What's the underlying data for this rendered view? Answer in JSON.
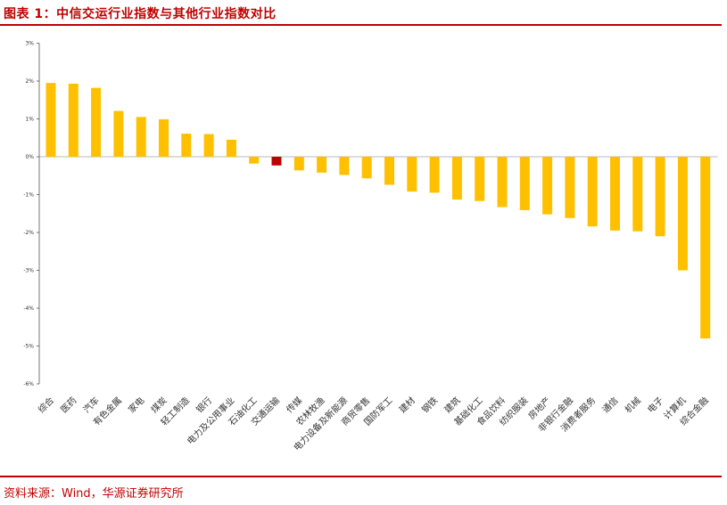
{
  "title": "图表 1：中信交运行业指数与其他行业指数对比",
  "source": "资料来源：Wind，华源证券研究所",
  "colors": {
    "bar": "#ffc000",
    "highlight": "#c00000",
    "accent": "#c00000"
  },
  "chart_data": {
    "type": "bar",
    "categories": [
      "综合",
      "医药",
      "汽车",
      "有色金属",
      "家电",
      "煤炭",
      "轻工制造",
      "银行",
      "电力及公用事业",
      "石油化工",
      "交通运输",
      "传媒",
      "农林牧渔",
      "电力设备及新能源",
      "商贸零售",
      "国防军工",
      "建材",
      "钢铁",
      "建筑",
      "基础化工",
      "食品饮料",
      "纺织服装",
      "房地产",
      "非银行金融",
      "消费者服务",
      "通信",
      "机械",
      "电子",
      "计算机",
      "综合金融"
    ],
    "values": [
      1.95,
      1.93,
      1.82,
      1.21,
      1.05,
      0.99,
      0.61,
      0.6,
      0.45,
      -0.18,
      -0.23,
      -0.36,
      -0.42,
      -0.48,
      -0.57,
      -0.74,
      -0.92,
      -0.95,
      -1.13,
      -1.17,
      -1.33,
      -1.41,
      -1.52,
      -1.62,
      -1.84,
      -1.95,
      -1.97,
      -2.1,
      -3.0,
      -4.8
    ],
    "highlight_category": "交通运输",
    "yticks": [
      "3%",
      "2%",
      "1%",
      "0%",
      "-1%",
      "-2%",
      "-3%",
      "-4%",
      "-5%",
      "-6%"
    ],
    "ylim": [
      -6,
      3
    ],
    "grid": false
  }
}
